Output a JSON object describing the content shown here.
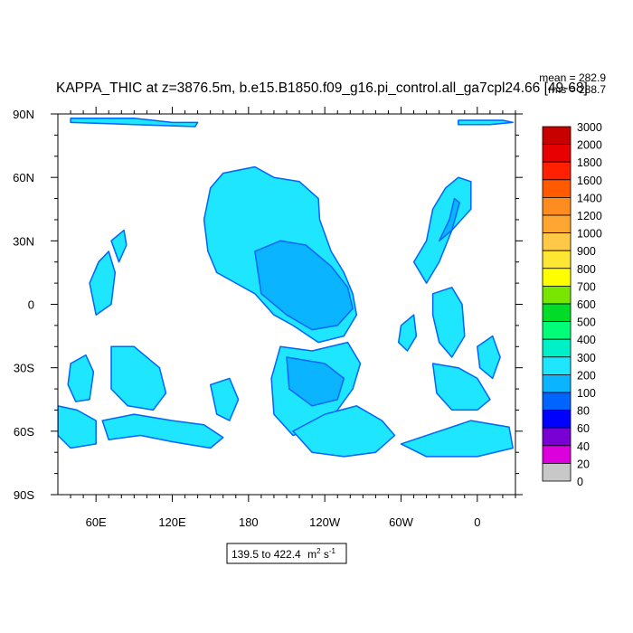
{
  "chart_data": {
    "type": "heatmap",
    "title": "KAPPA_THIC at z=3876.5m, b.e15.B1850.f09_g16.pi_control.all_ga7cpl24.66 [49-68]",
    "stats": {
      "mean": "mean = 282.9",
      "rms": "rms = 288.7"
    },
    "range_label": "139.5 to 422.4",
    "units": {
      "base": "m",
      "exp1": "2",
      "mid": " s",
      "exp2": "-1"
    },
    "x_ticks": [
      {
        "lon": 60,
        "label": "60E"
      },
      {
        "lon": 120,
        "label": "120E"
      },
      {
        "lon": 180,
        "label": "180"
      },
      {
        "lon": 240,
        "label": "120W"
      },
      {
        "lon": 300,
        "label": "60W"
      },
      {
        "lon": 360,
        "label": "0"
      }
    ],
    "y_ticks": [
      {
        "lat": 90,
        "label": "90N"
      },
      {
        "lat": 60,
        "label": "60N"
      },
      {
        "lat": 30,
        "label": "30N"
      },
      {
        "lat": 0,
        "label": "0"
      },
      {
        "lat": -30,
        "label": "30S"
      },
      {
        "lat": -60,
        "label": "60S"
      },
      {
        "lat": -90,
        "label": "90S"
      }
    ],
    "xlim": [
      30,
      390
    ],
    "ylim": [
      -90,
      90
    ],
    "colorbar": {
      "levels": [
        "3000",
        "2000",
        "1800",
        "1600",
        "1400",
        "1200",
        "1000",
        "900",
        "800",
        "700",
        "600",
        "500",
        "400",
        "300",
        "200",
        "100",
        "80",
        "60",
        "40",
        "20",
        "0"
      ],
      "colors": [
        "#c80000",
        "#e60000",
        "#ff2000",
        "#ff5a00",
        "#ff8c1e",
        "#ffa532",
        "#ffc846",
        "#ffe632",
        "#ffff00",
        "#78e600",
        "#00dc28",
        "#00ff78",
        "#00f0c8",
        "#1ee6ff",
        "#0ab4ff",
        "#0064ff",
        "#0000ff",
        "#7800d2",
        "#dc00dc",
        "#c8c8c8",
        "#646464"
      ]
    },
    "field_colors": {
      "dominant": "#1ee6ff",
      "secondary": "#0ab4ff",
      "edge": "#0064ff",
      "land": "#ffffff"
    }
  }
}
